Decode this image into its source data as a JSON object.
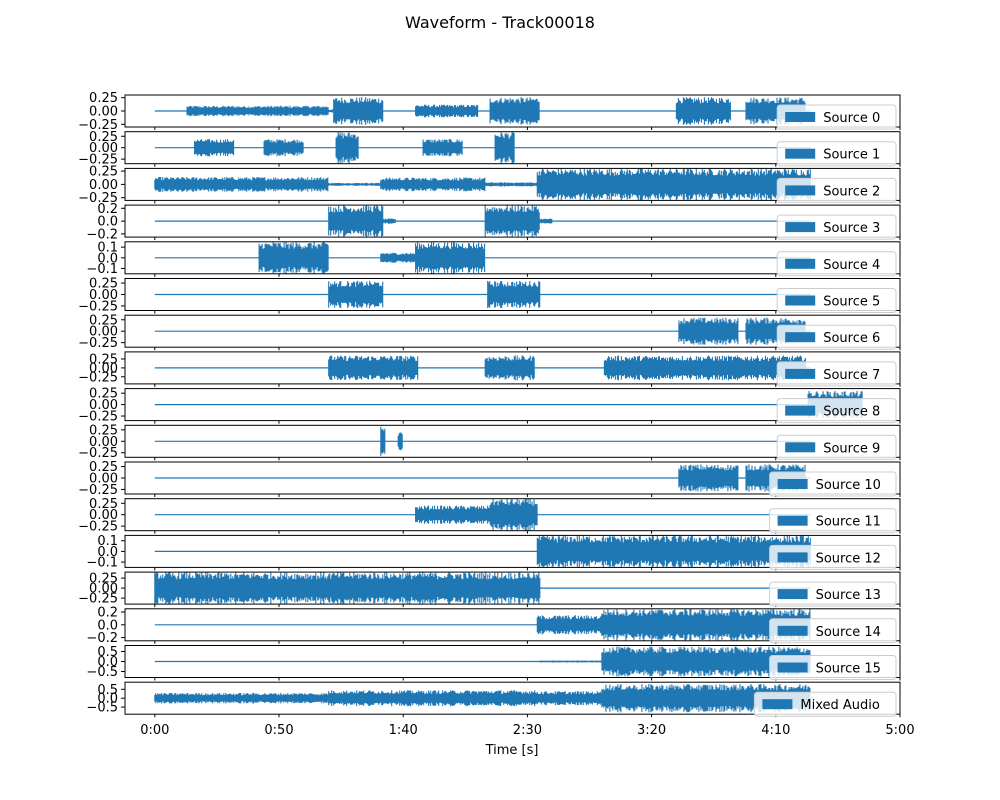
{
  "chart_data": {
    "type": "line",
    "title": "Waveform - Track00018",
    "xlabel": "Time [s]",
    "xlim": [
      -12,
      300
    ],
    "x_ticks": [
      {
        "value": 0,
        "label": "0:00"
      },
      {
        "value": 50,
        "label": "0:50"
      },
      {
        "value": 100,
        "label": "1:40"
      },
      {
        "value": 150,
        "label": "2:30"
      },
      {
        "value": 200,
        "label": "3:20"
      },
      {
        "value": 250,
        "label": "4:10"
      },
      {
        "value": 300,
        "label": "5:00"
      }
    ],
    "series_color": "#1f77b4",
    "legend_placement": "lower right",
    "grid": false,
    "panels": [
      {
        "name": "Source 0",
        "ylim": [
          -0.3,
          0.3
        ],
        "yticks": [
          {
            "v": 0.25,
            "l": "0.25"
          },
          {
            "v": 0,
            "l": "0.00"
          },
          {
            "v": -0.25,
            "l": "−0.25"
          }
        ],
        "segments": [
          [
            13,
            70,
            0.1
          ],
          [
            70,
            72,
            0.03
          ],
          [
            72,
            92,
            0.26
          ],
          [
            105,
            130,
            0.12
          ],
          [
            135,
            155,
            0.26
          ],
          [
            210,
            232,
            0.26
          ],
          [
            238,
            262,
            0.26
          ]
        ]
      },
      {
        "name": "Source 1",
        "ylim": [
          -0.35,
          0.35
        ],
        "yticks": [
          {
            "v": 0.25,
            "l": "0.25"
          },
          {
            "v": 0,
            "l": "0.00"
          },
          {
            "v": -0.25,
            "l": "−0.25"
          }
        ],
        "segments": [
          [
            16,
            32,
            0.19
          ],
          [
            44,
            60,
            0.19
          ],
          [
            73,
            82,
            0.35
          ],
          [
            108,
            124,
            0.19
          ],
          [
            137,
            145,
            0.35
          ]
        ]
      },
      {
        "name": "Source 2",
        "ylim": [
          -0.3,
          0.3
        ],
        "yticks": [
          {
            "v": 0.25,
            "l": "0.25"
          },
          {
            "v": 0,
            "l": "0.00"
          },
          {
            "v": -0.25,
            "l": "−0.25"
          }
        ],
        "segments": [
          [
            0,
            70,
            0.14
          ],
          [
            70,
            91,
            0.03
          ],
          [
            91,
            133,
            0.13
          ],
          [
            133,
            154,
            0.04
          ],
          [
            154,
            264,
            0.3
          ]
        ]
      },
      {
        "name": "Source 3",
        "ylim": [
          -0.25,
          0.25
        ],
        "yticks": [
          {
            "v": 0.2,
            "l": "0.2"
          },
          {
            "v": 0,
            "l": "0.0"
          },
          {
            "v": -0.2,
            "l": "−0.2"
          }
        ],
        "segments": [
          [
            70,
            92,
            0.25
          ],
          [
            92,
            97,
            0.04
          ],
          [
            133,
            155,
            0.25
          ],
          [
            155,
            160,
            0.04
          ]
        ]
      },
      {
        "name": "Source 4",
        "ylim": [
          -0.15,
          0.15
        ],
        "yticks": [
          {
            "v": 0.1,
            "l": "0.1"
          },
          {
            "v": 0,
            "l": "0.0"
          },
          {
            "v": -0.1,
            "l": "−0.1"
          }
        ],
        "segments": [
          [
            42,
            70,
            0.15
          ],
          [
            91,
            105,
            0.05
          ],
          [
            105,
            133,
            0.15
          ]
        ]
      },
      {
        "name": "Source 5",
        "ylim": [
          -0.35,
          0.35
        ],
        "yticks": [
          {
            "v": 0.25,
            "l": "0.25"
          },
          {
            "v": 0,
            "l": "0.00"
          },
          {
            "v": -0.25,
            "l": "−0.25"
          }
        ],
        "segments": [
          [
            70,
            92,
            0.3
          ],
          [
            134,
            155,
            0.3
          ]
        ]
      },
      {
        "name": "Source 6",
        "ylim": [
          -0.35,
          0.35
        ],
        "yticks": [
          {
            "v": 0.25,
            "l": "0.25"
          },
          {
            "v": 0,
            "l": "0.00"
          },
          {
            "v": -0.25,
            "l": "−0.25"
          }
        ],
        "segments": [
          [
            211,
            235,
            0.3
          ],
          [
            238,
            262,
            0.3
          ]
        ]
      },
      {
        "name": "Source 7",
        "ylim": [
          -0.45,
          0.45
        ],
        "yticks": [
          {
            "v": 0.25,
            "l": "0.25"
          },
          {
            "v": 0,
            "l": "0.00"
          },
          {
            "v": -0.25,
            "l": "−0.25"
          }
        ],
        "segments": [
          [
            70,
            106,
            0.35
          ],
          [
            133,
            153,
            0.35
          ],
          [
            181,
            262,
            0.35
          ]
        ]
      },
      {
        "name": "Source 8",
        "ylim": [
          -0.35,
          0.35
        ],
        "yticks": [
          {
            "v": 0.25,
            "l": "0.25"
          },
          {
            "v": 0,
            "l": "0.00"
          },
          {
            "v": -0.25,
            "l": "−0.25"
          }
        ],
        "segments": [
          [
            263,
            285,
            0.3
          ]
        ]
      },
      {
        "name": "Source 9",
        "ylim": [
          -0.35,
          0.35
        ],
        "yticks": [
          {
            "v": 0.25,
            "l": "0.25"
          },
          {
            "v": 0,
            "l": "0.00"
          },
          {
            "v": -0.25,
            "l": "−0.25"
          }
        ],
        "segments": [
          [
            91,
            93,
            0.33
          ],
          [
            98,
            100,
            0.2
          ]
        ]
      },
      {
        "name": "Source 10",
        "ylim": [
          -0.35,
          0.35
        ],
        "yticks": [
          {
            "v": 0.25,
            "l": "0.25"
          },
          {
            "v": 0,
            "l": "0.00"
          },
          {
            "v": -0.25,
            "l": "−0.25"
          }
        ],
        "segments": [
          [
            211,
            235,
            0.3
          ],
          [
            238,
            262,
            0.3
          ]
        ]
      },
      {
        "name": "Source 11",
        "ylim": [
          -0.35,
          0.35
        ],
        "yticks": [
          {
            "v": 0.25,
            "l": "0.25"
          },
          {
            "v": 0,
            "l": "0.00"
          },
          {
            "v": -0.25,
            "l": "−0.25"
          }
        ],
        "segments": [
          [
            105,
            135,
            0.2
          ],
          [
            135,
            154,
            0.35
          ]
        ]
      },
      {
        "name": "Source 12",
        "ylim": [
          -0.15,
          0.15
        ],
        "yticks": [
          {
            "v": 0.1,
            "l": "0.1"
          },
          {
            "v": 0,
            "l": "0.0"
          },
          {
            "v": -0.1,
            "l": "−0.1"
          }
        ],
        "segments": [
          [
            154,
            264,
            0.15
          ]
        ]
      },
      {
        "name": "Source 13",
        "ylim": [
          -0.4,
          0.4
        ],
        "yticks": [
          {
            "v": 0.25,
            "l": "0.25"
          },
          {
            "v": 0,
            "l": "0.00"
          },
          {
            "v": -0.25,
            "l": "−0.25"
          }
        ],
        "segments": [
          [
            0,
            155,
            0.4
          ]
        ]
      },
      {
        "name": "Source 14",
        "ylim": [
          -0.25,
          0.25
        ],
        "yticks": [
          {
            "v": 0.2,
            "l": "0.2"
          },
          {
            "v": 0,
            "l": "0.0"
          },
          {
            "v": -0.2,
            "l": "−0.2"
          }
        ],
        "segments": [
          [
            154,
            180,
            0.15
          ],
          [
            180,
            264,
            0.25
          ]
        ]
      },
      {
        "name": "Source 15",
        "ylim": [
          -0.8,
          0.8
        ],
        "yticks": [
          {
            "v": 0.5,
            "l": "0.5"
          },
          {
            "v": 0,
            "l": "0.0"
          },
          {
            "v": -0.5,
            "l": "−0.5"
          }
        ],
        "segments": [
          [
            155,
            180,
            0.05
          ],
          [
            180,
            264,
            0.75
          ]
        ]
      },
      {
        "name": "Mixed Audio",
        "ylim": [
          -0.9,
          0.9
        ],
        "yticks": [
          {
            "v": 0.5,
            "l": "0.5"
          },
          {
            "v": 0,
            "l": "0.0"
          },
          {
            "v": -0.5,
            "l": "−0.5"
          }
        ],
        "segments": [
          [
            0,
            70,
            0.3
          ],
          [
            70,
            154,
            0.45
          ],
          [
            154,
            180,
            0.4
          ],
          [
            180,
            264,
            0.8
          ]
        ]
      }
    ]
  }
}
